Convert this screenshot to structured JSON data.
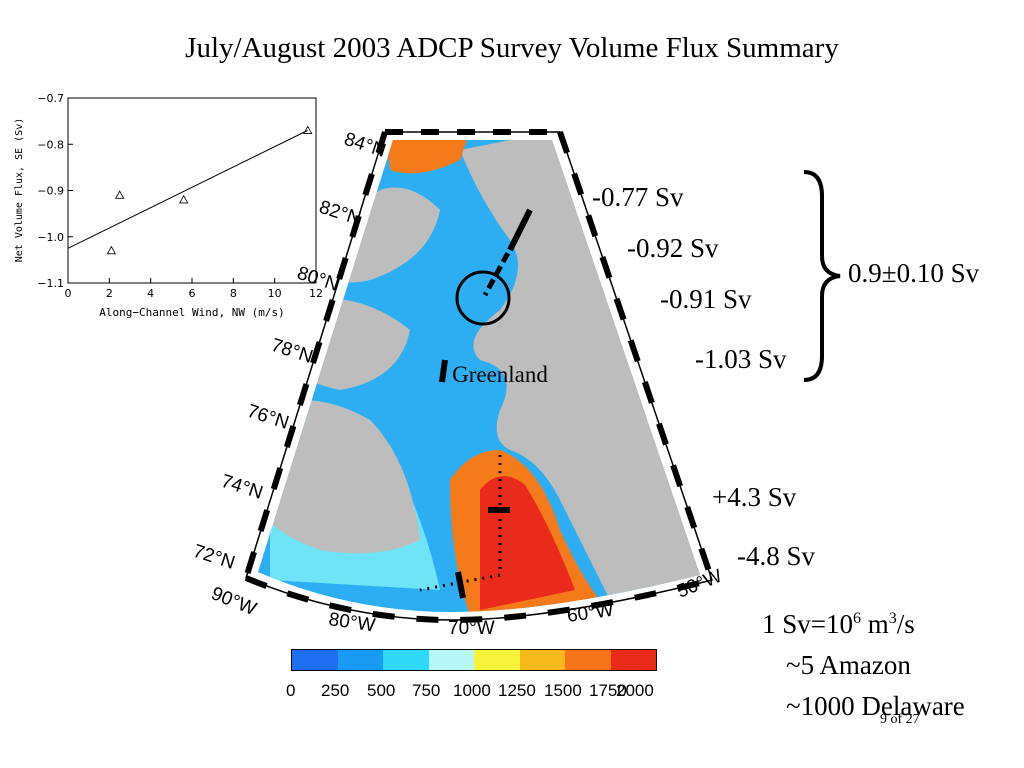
{
  "slide": {
    "title": "July/August 2003 ADCP Survey Volume Flux Summary",
    "page_number": "9 of 27"
  },
  "flux_labels": [
    "-0.77 Sv",
    "-0.92 Sv",
    "-0.91 Sv",
    "-1.03 Sv",
    "+4.3 Sv",
    "-4.8 Sv"
  ],
  "summary": {
    "total": "0.9±0.10 Sv"
  },
  "map": {
    "region_label": "Greenland",
    "lat_labels": [
      "84°N",
      "82°N",
      "80°N",
      "78°N",
      "76°N",
      "74°N",
      "72°N"
    ],
    "lon_labels": [
      "90°W",
      "80°W",
      "70°W",
      "60°W",
      "50°W"
    ]
  },
  "colorbar": {
    "ticks": [
      "0",
      "250",
      "500",
      "750",
      "1000",
      "1250",
      "1500",
      "1750",
      "2000"
    ],
    "colors": [
      "#1e6cf0",
      "#1a9cf4",
      "#2fd8f4",
      "#b8f6f8",
      "#f7f23a",
      "#f6b81a",
      "#f4741a",
      "#ea2a1a"
    ]
  },
  "units": {
    "line1_a": "1 Sv=10",
    "line1_exp1": "6",
    "line1_b": " m",
    "line1_exp2": "3",
    "line1_c": "/s",
    "line2": "~5 Amazon",
    "line3": "~1000 Delaware"
  },
  "chart_data": {
    "type": "scatter",
    "title": "",
    "xlabel": "Along−Channel Wind, NW (m/s)",
    "ylabel": "Net Volume Flux, SE (Sv)",
    "xlim": [
      0,
      12
    ],
    "ylim": [
      -1.1,
      -0.7
    ],
    "x_ticks": [
      "0",
      "2",
      "4",
      "6",
      "8",
      "10",
      "12"
    ],
    "y_ticks": [
      "−0.7",
      "−0.8",
      "−0.9",
      "−1.0",
      "−1.1"
    ],
    "points": [
      {
        "x": 2.1,
        "y": -1.03
      },
      {
        "x": 2.5,
        "y": -0.91
      },
      {
        "x": 5.6,
        "y": -0.92
      },
      {
        "x": 11.6,
        "y": -0.77
      }
    ],
    "fit_line": {
      "x": [
        0,
        11.6
      ],
      "y": [
        -1.025,
        -0.77
      ]
    },
    "marker": "triangle"
  }
}
